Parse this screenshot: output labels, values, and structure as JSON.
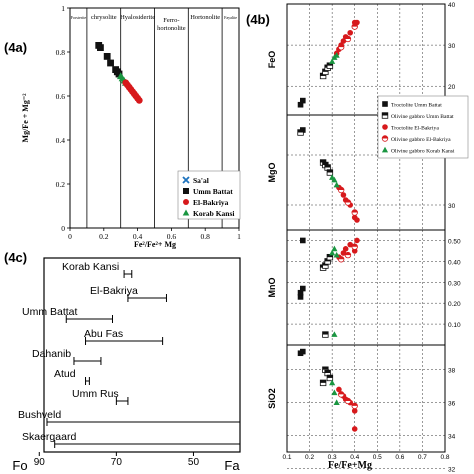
{
  "panels": {
    "a": {
      "label": "(4a)",
      "ylabel": "Mg/Fe + Mg⁻²",
      "xlabel": "Fe²/Fe²+ Mg",
      "fields": [
        "Forsterite",
        "chrysolite",
        "Hyalosiderite",
        "Ferro-hortonolite",
        "Hortonolite",
        "Fayalite"
      ],
      "xticks": [
        "0",
        "0.2",
        "0.4",
        "0.6",
        "0.8",
        "1"
      ],
      "yticks": [
        "0",
        "0.2",
        "0.4",
        "0.6",
        "0.8",
        "1"
      ],
      "legend": [
        {
          "name": "Sa'al",
          "marker": "x",
          "color": "#1e73be"
        },
        {
          "name": "Umm Battat",
          "marker": "square",
          "color": "#111111"
        },
        {
          "name": "El-Bakriya",
          "marker": "circle",
          "color": "#d7191c"
        },
        {
          "name": "Korab Kansi",
          "marker": "triangle",
          "color": "#1a9641"
        }
      ]
    },
    "b": {
      "label": "(4b)",
      "xlabel": "Fe/Fe+Mg",
      "xticks": [
        "0.1",
        "0.2",
        "0.3",
        "0.4",
        "0.5",
        "0.6",
        "0.7",
        "0.8"
      ],
      "subplots": [
        {
          "ylabel": "FeO",
          "yticks": [
            "20",
            "30",
            "40"
          ]
        },
        {
          "ylabel": "MgO",
          "yticks": [
            "30",
            "40"
          ]
        },
        {
          "ylabel": "MnO",
          "yticks": [
            "0.10",
            "0.20",
            "0.30",
            "0.40",
            "0.50"
          ]
        },
        {
          "ylabel": "SiO2",
          "yticks": [
            "32",
            "34",
            "36",
            "38"
          ]
        }
      ],
      "legend": [
        {
          "name": "Troctolite Umm Battat",
          "marker": "square",
          "color": "#111111"
        },
        {
          "name": "Olivine gabbro Umm Battat",
          "marker": "half-square",
          "color": "#111111"
        },
        {
          "name": "Troctolite El-Bakriya",
          "marker": "circle",
          "color": "#d7191c"
        },
        {
          "name": "Olivine gabbro El-Bakriya",
          "marker": "half-circle",
          "color": "#d7191c"
        },
        {
          "name": "Olivine gabbro Korab Kansi",
          "marker": "triangle",
          "color": "#1a9641"
        }
      ]
    },
    "c": {
      "label": "(4c)",
      "left_end": "Fo",
      "right_end": "Fa",
      "xticks": [
        "90",
        "70",
        "50"
      ],
      "ranges": [
        {
          "name": "Korab Kansi",
          "from": 68,
          "to": 66
        },
        {
          "name": "El-Bakriya",
          "from": 67,
          "to": 57
        },
        {
          "name": "Umm Battat",
          "from": 83,
          "to": 71
        },
        {
          "name": "Abu Fas",
          "from": 78,
          "to": 58
        },
        {
          "name": "Dahanib",
          "from": 81,
          "to": 74
        },
        {
          "name": "Atud",
          "from": 78,
          "to": 77
        },
        {
          "name": "Umm Rus",
          "from": 70,
          "to": 67
        },
        {
          "name": "Bushveld",
          "from": 88,
          "to": 38
        },
        {
          "name": "Skaergaard",
          "from": 86,
          "to": 38
        }
      ]
    }
  },
  "chart_data": [
    {
      "type": "scatter",
      "panel": "4a",
      "xlabel": "Fe²/Fe²+ Mg",
      "ylabel": "Mg/Fe + Mg⁻²",
      "xlim": [
        0,
        1
      ],
      "ylim": [
        0,
        1
      ],
      "series": [
        {
          "name": "Umm Battat",
          "points": [
            [
              0.17,
              0.83
            ],
            [
              0.18,
              0.82
            ],
            [
              0.22,
              0.78
            ],
            [
              0.24,
              0.75
            ],
            [
              0.27,
              0.72
            ],
            [
              0.28,
              0.71
            ],
            [
              0.29,
              0.7
            ]
          ]
        },
        {
          "name": "Korab Kansi",
          "points": [
            [
              0.3,
              0.69
            ],
            [
              0.31,
              0.68
            ],
            [
              0.32,
              0.67
            ],
            [
              0.33,
              0.66
            ]
          ]
        },
        {
          "name": "El-Bakriya",
          "points": [
            [
              0.33,
              0.66
            ],
            [
              0.34,
              0.65
            ],
            [
              0.35,
              0.64
            ],
            [
              0.36,
              0.63
            ],
            [
              0.37,
              0.62
            ],
            [
              0.38,
              0.61
            ],
            [
              0.39,
              0.6
            ],
            [
              0.4,
              0.59
            ],
            [
              0.41,
              0.58
            ]
          ]
        }
      ]
    },
    {
      "type": "scatter",
      "panel": "4b",
      "xlabel": "Fe/Fe+Mg",
      "xlim": [
        0.1,
        0.8
      ],
      "subplots": [
        {
          "ylabel": "FeO",
          "ylim": [
            13,
            40
          ],
          "series": [
            {
              "name": "Troctolite Umm Battat",
              "points": [
                [
                  0.16,
                  15.5
                ],
                [
                  0.17,
                  16.5
                ]
              ]
            },
            {
              "name": "Olivine gabbro Umm Battat",
              "points": [
                [
                  0.26,
                  22.5
                ],
                [
                  0.27,
                  23.5
                ],
                [
                  0.28,
                  24.5
                ],
                [
                  0.29,
                  25.0
                ]
              ]
            },
            {
              "name": "Troctolite El-Bakriya",
              "points": [
                [
                  0.32,
                  28
                ],
                [
                  0.33,
                  29
                ],
                [
                  0.34,
                  30
                ],
                [
                  0.35,
                  31
                ],
                [
                  0.36,
                  32
                ],
                [
                  0.38,
                  33
                ],
                [
                  0.4,
                  35.5
                ],
                [
                  0.41,
                  35.5
                ]
              ]
            },
            {
              "name": "Olivine gabbro El-Bakriya",
              "points": [
                [
                  0.34,
                  29.5
                ],
                [
                  0.37,
                  31.5
                ],
                [
                  0.4,
                  34.5
                ]
              ]
            },
            {
              "name": "Olivine gabbro Korab Kansi",
              "points": [
                [
                  0.3,
                  26
                ],
                [
                  0.31,
                  27
                ],
                [
                  0.32,
                  27.5
                ]
              ]
            }
          ]
        },
        {
          "ylabel": "MgO",
          "ylim": [
            25,
            48
          ],
          "series": [
            {
              "name": "Troctolite Umm Battat",
              "points": [
                [
                  0.17,
                  45
                ]
              ]
            },
            {
              "name": "Olivine gabbro Umm Battat",
              "points": [
                [
                  0.16,
                  44.5
                ],
                [
                  0.26,
                  38.5
                ],
                [
                  0.27,
                  38.0
                ],
                [
                  0.28,
                  37.5
                ],
                [
                  0.29,
                  36.5
                ]
              ]
            },
            {
              "name": "Troctolite El-Bakriya",
              "points": [
                [
                  0.33,
                  33.5
                ],
                [
                  0.35,
                  32
                ],
                [
                  0.36,
                  31
                ],
                [
                  0.38,
                  30
                ],
                [
                  0.4,
                  27.5
                ],
                [
                  0.41,
                  27
                ]
              ]
            },
            {
              "name": "Olivine gabbro El-Bakriya",
              "points": [
                [
                  0.34,
                  33
                ],
                [
                  0.37,
                  30.5
                ],
                [
                  0.4,
                  28.5
                ]
              ]
            },
            {
              "name": "Olivine gabbro Korab Kansi",
              "points": [
                [
                  0.3,
                  35.5
                ],
                [
                  0.31,
                  35
                ],
                [
                  0.32,
                  34
                ]
              ]
            }
          ]
        },
        {
          "ylabel": "MnO",
          "ylim": [
            0,
            0.55
          ],
          "series": [
            {
              "name": "Troctolite Umm Battat",
              "points": [
                [
                  0.16,
                  0.23
                ],
                [
                  0.16,
                  0.25
                ],
                [
                  0.17,
                  0.27
                ],
                [
                  0.17,
                  0.5
                ]
              ]
            },
            {
              "name": "Olivine gabbro Umm Battat",
              "points": [
                [
                  0.26,
                  0.37
                ],
                [
                  0.27,
                  0.38
                ],
                [
                  0.28,
                  0.4
                ],
                [
                  0.29,
                  0.42
                ],
                [
                  0.27,
                  0.05
                ]
              ]
            },
            {
              "name": "Troctolite El-Bakriya",
              "points": [
                [
                  0.33,
                  0.42
                ],
                [
                  0.35,
                  0.44
                ],
                [
                  0.36,
                  0.46
                ],
                [
                  0.38,
                  0.48
                ],
                [
                  0.4,
                  0.45
                ],
                [
                  0.41,
                  0.5
                ]
              ]
            },
            {
              "name": "Olivine gabbro El-Bakriya",
              "points": [
                [
                  0.34,
                  0.41
                ],
                [
                  0.37,
                  0.43
                ],
                [
                  0.4,
                  0.47
                ]
              ]
            },
            {
              "name": "Olivine gabbro Korab Kansi",
              "points": [
                [
                  0.3,
                  0.44
                ],
                [
                  0.31,
                  0.46
                ],
                [
                  0.32,
                  0.43
                ],
                [
                  0.31,
                  0.05
                ]
              ]
            }
          ]
        },
        {
          "ylabel": "SiO2",
          "ylim": [
            33.0,
            39.5
          ],
          "series": [
            {
              "name": "Troctolite Umm Battat",
              "points": [
                [
                  0.16,
                  39.0
                ],
                [
                  0.17,
                  39.1
                ]
              ]
            },
            {
              "name": "Olivine gabbro Umm Battat",
              "points": [
                [
                  0.26,
                  37.2
                ],
                [
                  0.27,
                  38.0
                ],
                [
                  0.28,
                  37.8
                ],
                [
                  0.29,
                  37.5
                ]
              ]
            },
            {
              "name": "Troctolite El-Bakriya",
              "points": [
                [
                  0.33,
                  36.8
                ],
                [
                  0.35,
                  36.4
                ],
                [
                  0.36,
                  36.2
                ],
                [
                  0.38,
                  36.0
                ],
                [
                  0.4,
                  35.5
                ],
                [
                  0.4,
                  34.4
                ]
              ]
            },
            {
              "name": "Olivine gabbro El-Bakriya",
              "points": [
                [
                  0.34,
                  36.5
                ],
                [
                  0.37,
                  36.1
                ],
                [
                  0.4,
                  35.8
                ]
              ]
            },
            {
              "name": "Olivine gabbro Korab Kansi",
              "points": [
                [
                  0.3,
                  37.2
                ],
                [
                  0.31,
                  36.6
                ],
                [
                  0.32,
                  36.0
                ]
              ]
            }
          ]
        }
      ]
    },
    {
      "type": "range",
      "panel": "4c",
      "xlim": [
        95,
        40
      ],
      "ranges": [
        {
          "name": "Korab Kansi",
          "from": 68,
          "to": 66
        },
        {
          "name": "El-Bakriya",
          "from": 67,
          "to": 57
        },
        {
          "name": "Umm Battat",
          "from": 83,
          "to": 71
        },
        {
          "name": "Abu Fas",
          "from": 78,
          "to": 58
        },
        {
          "name": "Dahanib",
          "from": 81,
          "to": 74
        },
        {
          "name": "Atud",
          "from": 78,
          "to": 77
        },
        {
          "name": "Umm Rus",
          "from": 70,
          "to": 67
        },
        {
          "name": "Bushveld",
          "from": 88,
          "to": 38
        },
        {
          "name": "Skaergaard",
          "from": 86,
          "to": 38
        }
      ]
    }
  ]
}
